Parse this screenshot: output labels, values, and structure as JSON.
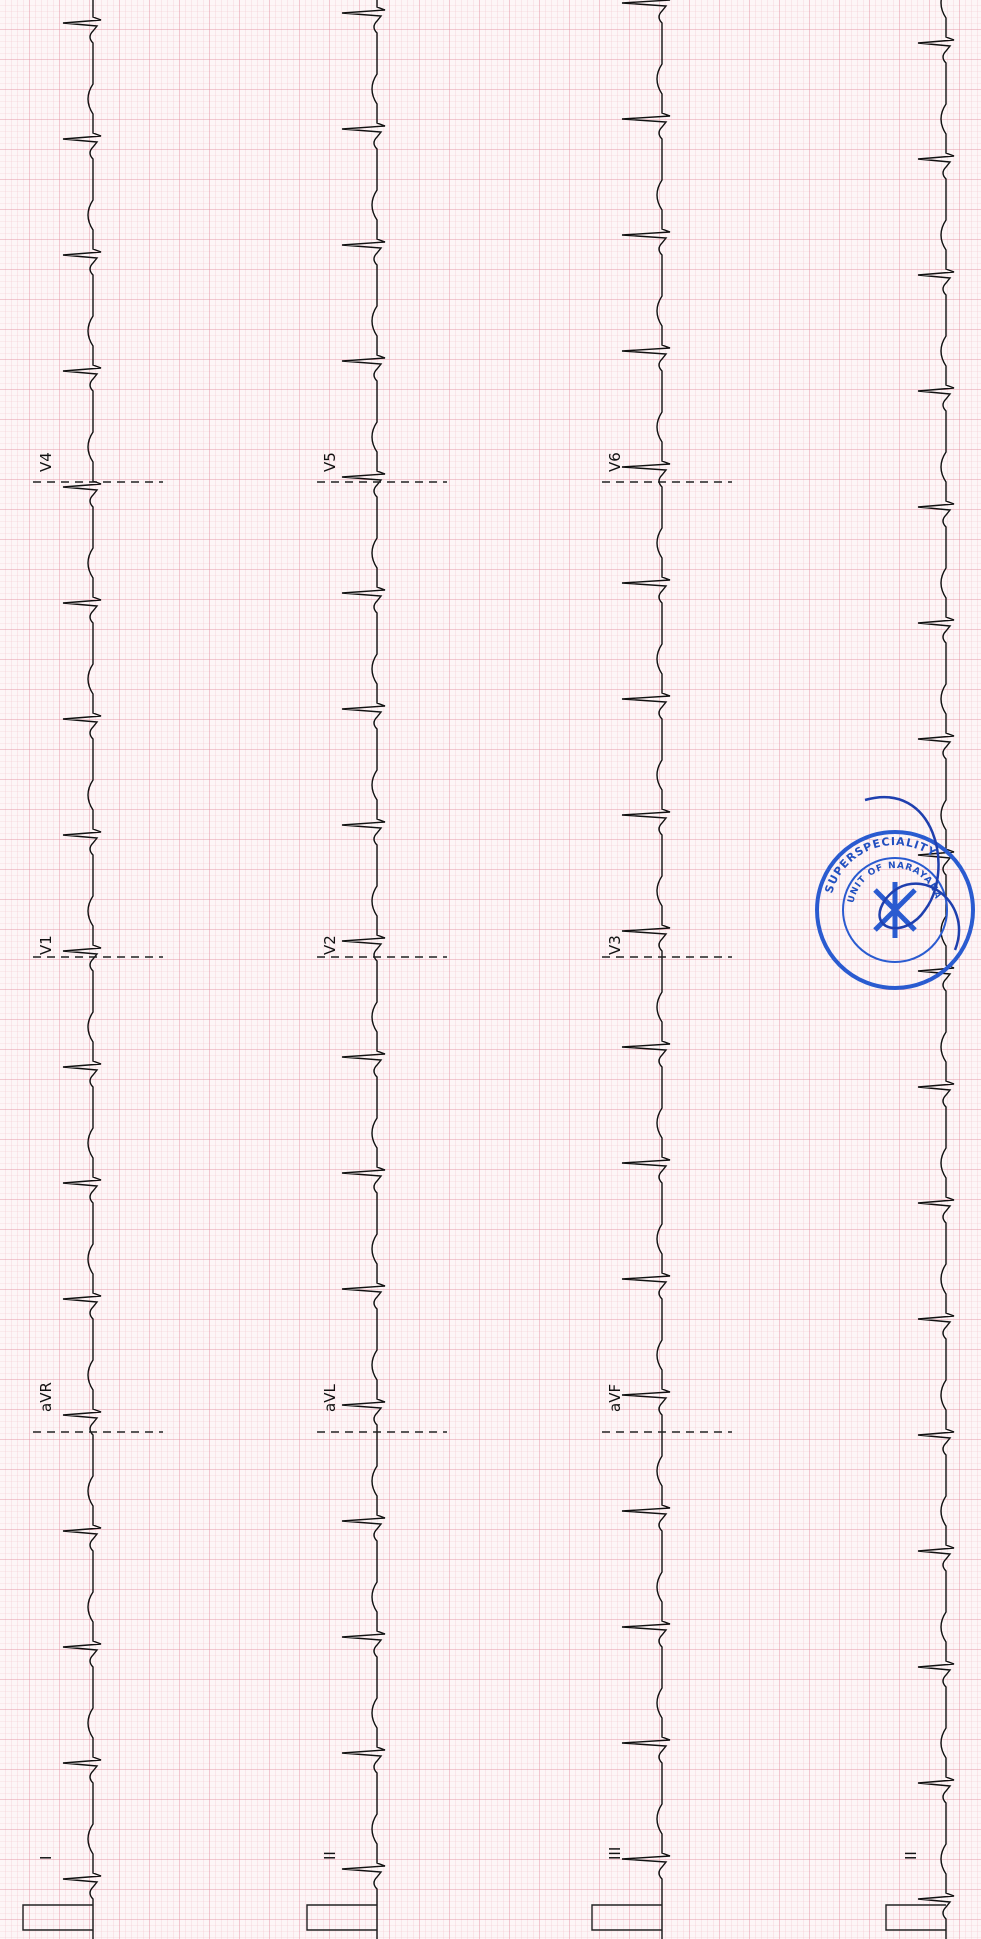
{
  "leads": [
    [
      "I",
      "aVR",
      "V1",
      "V4"
    ],
    [
      "II",
      "aVL",
      "V2",
      "V5"
    ],
    [
      "III",
      "aVF",
      "V3",
      "V6"
    ]
  ],
  "rhythm_lead": "II",
  "stamp": [
    "SUPERSPECIALITY",
    "UNIT OF NARAYANA"
  ]
}
